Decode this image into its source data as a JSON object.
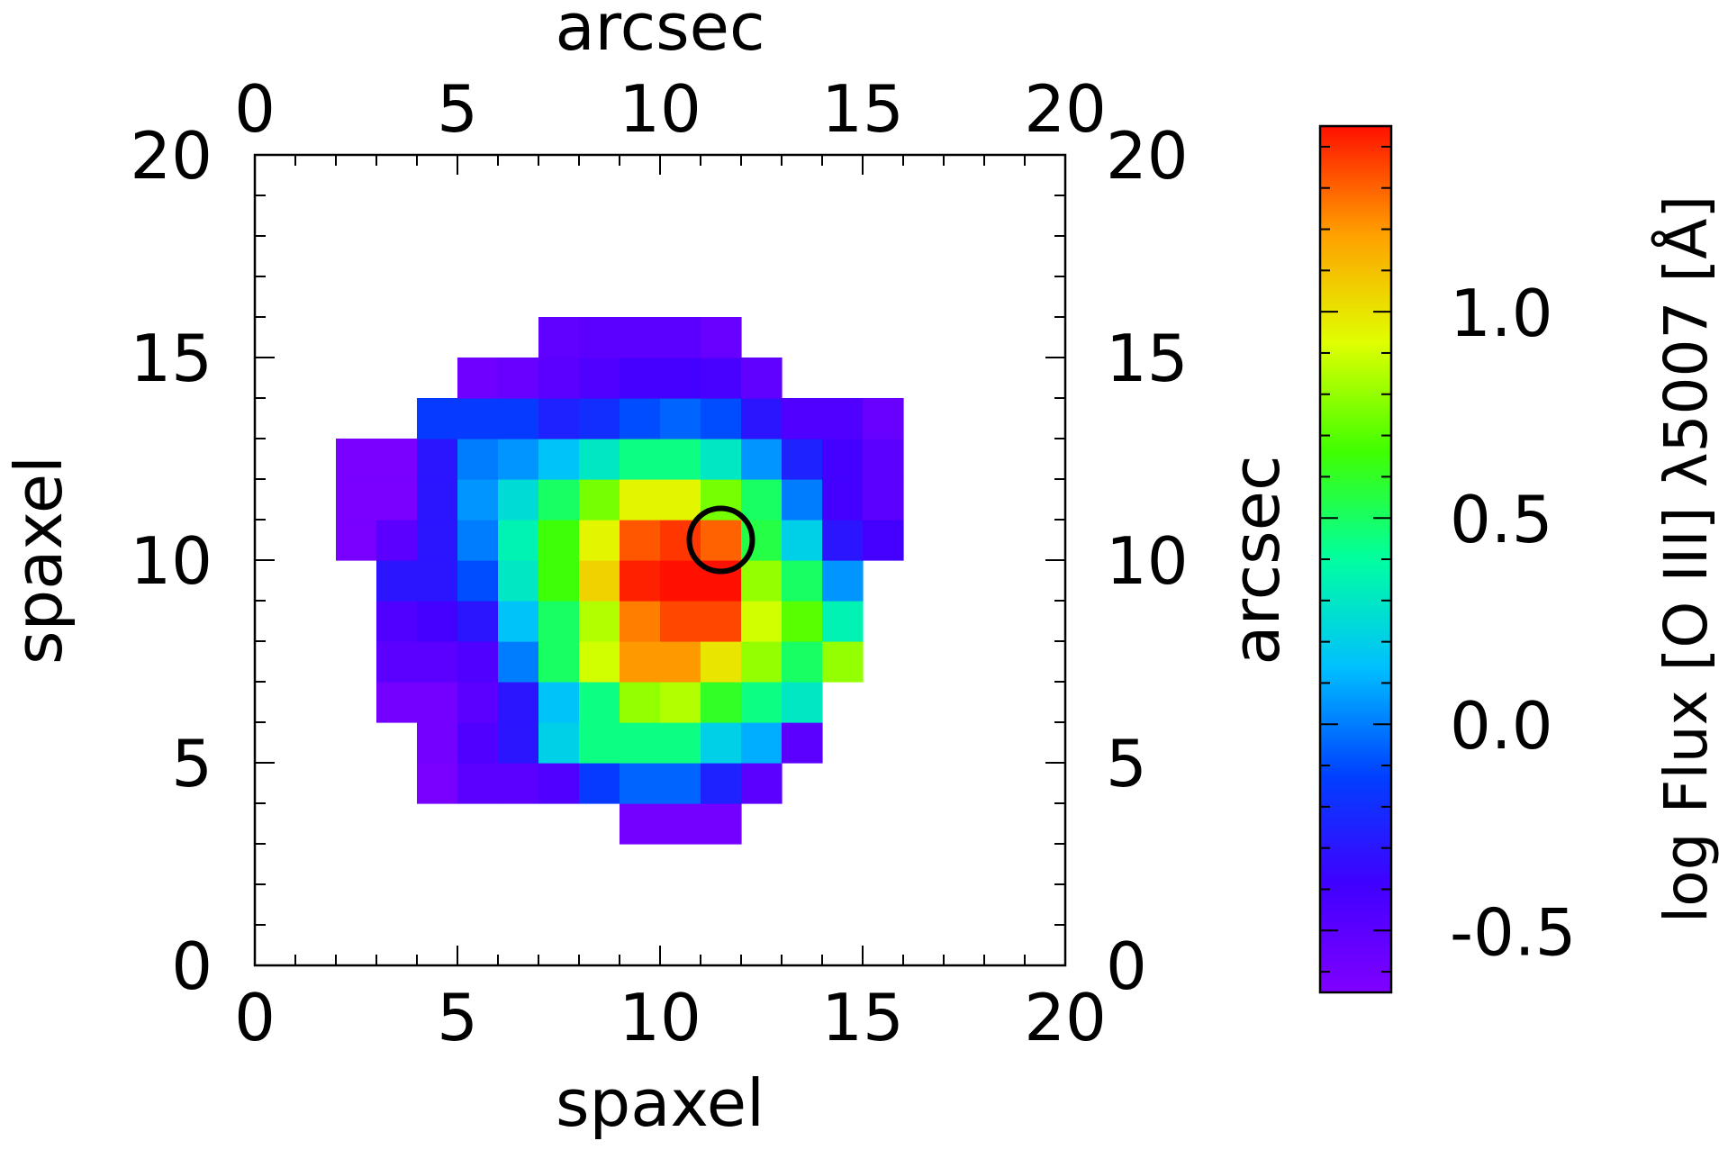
{
  "chart_data": {
    "type": "heatmap",
    "title": "",
    "xlabel": "spaxel",
    "ylabel": "spaxel",
    "x2label": "arcsec",
    "y2label": "arcsec",
    "xlim": [
      0,
      20
    ],
    "ylim": [
      0,
      20
    ],
    "x_ticks": [
      "0",
      "5",
      "10",
      "15",
      "20"
    ],
    "y_ticks": [
      "0",
      "5",
      "10",
      "15",
      "20"
    ],
    "x2_ticks": [
      "0",
      "5",
      "10",
      "15",
      "20"
    ],
    "y2_ticks": [
      "0",
      "5",
      "10",
      "15",
      "20"
    ],
    "colorbar": {
      "label": "log Flux [O III] λ5007 [Å]",
      "range": [
        -0.65,
        1.45
      ],
      "ticks": [
        {
          "value": 1.0,
          "label": "1.0"
        },
        {
          "value": 0.5,
          "label": "0.5"
        },
        {
          "value": 0.0,
          "label": "0.0"
        },
        {
          "value": -0.5,
          "label": "-0.5"
        }
      ],
      "colormap": "rainbow"
    },
    "marker": {
      "type": "circle",
      "x": 11.5,
      "y": 10.5,
      "color": "#000000"
    },
    "cells": [
      {
        "x": 9,
        "y": 3,
        "v": -0.6
      },
      {
        "x": 10,
        "y": 3,
        "v": -0.6
      },
      {
        "x": 11,
        "y": 3,
        "v": -0.6
      },
      {
        "x": 4,
        "y": 4,
        "v": -0.62
      },
      {
        "x": 5,
        "y": 4,
        "v": -0.5
      },
      {
        "x": 6,
        "y": 4,
        "v": -0.5
      },
      {
        "x": 7,
        "y": 4,
        "v": -0.45
      },
      {
        "x": 8,
        "y": 4,
        "v": -0.15
      },
      {
        "x": 9,
        "y": 4,
        "v": -0.05
      },
      {
        "x": 10,
        "y": 4,
        "v": -0.05
      },
      {
        "x": 11,
        "y": 4,
        "v": -0.25
      },
      {
        "x": 12,
        "y": 4,
        "v": -0.5
      },
      {
        "x": 4,
        "y": 5,
        "v": -0.6
      },
      {
        "x": 5,
        "y": 5,
        "v": -0.45
      },
      {
        "x": 6,
        "y": 5,
        "v": -0.3
      },
      {
        "x": 7,
        "y": 5,
        "v": 0.2
      },
      {
        "x": 8,
        "y": 5,
        "v": 0.45
      },
      {
        "x": 9,
        "y": 5,
        "v": 0.45
      },
      {
        "x": 10,
        "y": 5,
        "v": 0.45
      },
      {
        "x": 11,
        "y": 5,
        "v": 0.2
      },
      {
        "x": 12,
        "y": 5,
        "v": 0.1
      },
      {
        "x": 13,
        "y": 5,
        "v": -0.5
      },
      {
        "x": 3,
        "y": 6,
        "v": -0.6
      },
      {
        "x": 4,
        "y": 6,
        "v": -0.6
      },
      {
        "x": 5,
        "y": 6,
        "v": -0.5
      },
      {
        "x": 6,
        "y": 6,
        "v": -0.3
      },
      {
        "x": 7,
        "y": 6,
        "v": 0.15
      },
      {
        "x": 8,
        "y": 6,
        "v": 0.45
      },
      {
        "x": 9,
        "y": 6,
        "v": 0.8
      },
      {
        "x": 10,
        "y": 6,
        "v": 0.85
      },
      {
        "x": 11,
        "y": 6,
        "v": 0.6
      },
      {
        "x": 12,
        "y": 6,
        "v": 0.45
      },
      {
        "x": 13,
        "y": 6,
        "v": 0.3
      },
      {
        "x": 3,
        "y": 7,
        "v": -0.5
      },
      {
        "x": 4,
        "y": 7,
        "v": -0.5
      },
      {
        "x": 5,
        "y": 7,
        "v": -0.45
      },
      {
        "x": 6,
        "y": 7,
        "v": 0.0
      },
      {
        "x": 7,
        "y": 7,
        "v": 0.5
      },
      {
        "x": 8,
        "y": 7,
        "v": 0.9
      },
      {
        "x": 9,
        "y": 7,
        "v": 1.2
      },
      {
        "x": 10,
        "y": 7,
        "v": 1.2
      },
      {
        "x": 11,
        "y": 7,
        "v": 1.0
      },
      {
        "x": 12,
        "y": 7,
        "v": 0.8
      },
      {
        "x": 13,
        "y": 7,
        "v": 0.5
      },
      {
        "x": 14,
        "y": 7,
        "v": 0.8
      },
      {
        "x": 3,
        "y": 8,
        "v": -0.45
      },
      {
        "x": 4,
        "y": 8,
        "v": -0.4
      },
      {
        "x": 5,
        "y": 8,
        "v": -0.3
      },
      {
        "x": 6,
        "y": 8,
        "v": 0.15
      },
      {
        "x": 7,
        "y": 8,
        "v": 0.5
      },
      {
        "x": 8,
        "y": 8,
        "v": 0.85
      },
      {
        "x": 9,
        "y": 8,
        "v": 1.25
      },
      {
        "x": 10,
        "y": 8,
        "v": 1.35
      },
      {
        "x": 11,
        "y": 8,
        "v": 1.35
      },
      {
        "x": 12,
        "y": 8,
        "v": 0.9
      },
      {
        "x": 13,
        "y": 8,
        "v": 0.7
      },
      {
        "x": 14,
        "y": 8,
        "v": 0.35
      },
      {
        "x": 3,
        "y": 9,
        "v": -0.3
      },
      {
        "x": 4,
        "y": 9,
        "v": -0.3
      },
      {
        "x": 5,
        "y": 9,
        "v": -0.1
      },
      {
        "x": 6,
        "y": 9,
        "v": 0.3
      },
      {
        "x": 7,
        "y": 9,
        "v": 0.65
      },
      {
        "x": 8,
        "y": 9,
        "v": 1.05
      },
      {
        "x": 9,
        "y": 9,
        "v": 1.42
      },
      {
        "x": 10,
        "y": 9,
        "v": 1.45
      },
      {
        "x": 11,
        "y": 9,
        "v": 1.45
      },
      {
        "x": 12,
        "y": 9,
        "v": 0.8
      },
      {
        "x": 13,
        "y": 9,
        "v": 0.5
      },
      {
        "x": 14,
        "y": 9,
        "v": 0.05
      },
      {
        "x": 2,
        "y": 10,
        "v": -0.62
      },
      {
        "x": 3,
        "y": 10,
        "v": -0.5
      },
      {
        "x": 4,
        "y": 10,
        "v": -0.3
      },
      {
        "x": 5,
        "y": 10,
        "v": 0.0
      },
      {
        "x": 6,
        "y": 10,
        "v": 0.35
      },
      {
        "x": 7,
        "y": 10,
        "v": 0.65
      },
      {
        "x": 8,
        "y": 10,
        "v": 0.95
      },
      {
        "x": 9,
        "y": 10,
        "v": 1.32
      },
      {
        "x": 10,
        "y": 10,
        "v": 1.38
      },
      {
        "x": 11,
        "y": 10,
        "v": 1.3
      },
      {
        "x": 12,
        "y": 10,
        "v": 0.55
      },
      {
        "x": 13,
        "y": 10,
        "v": 0.2
      },
      {
        "x": 14,
        "y": 10,
        "v": -0.3
      },
      {
        "x": 15,
        "y": 10,
        "v": -0.4
      },
      {
        "x": 2,
        "y": 11,
        "v": -0.62
      },
      {
        "x": 3,
        "y": 11,
        "v": -0.62
      },
      {
        "x": 4,
        "y": 11,
        "v": -0.3
      },
      {
        "x": 5,
        "y": 11,
        "v": 0.05
      },
      {
        "x": 6,
        "y": 11,
        "v": 0.25
      },
      {
        "x": 7,
        "y": 11,
        "v": 0.5
      },
      {
        "x": 8,
        "y": 11,
        "v": 0.75
      },
      {
        "x": 9,
        "y": 11,
        "v": 0.95
      },
      {
        "x": 10,
        "y": 11,
        "v": 0.95
      },
      {
        "x": 11,
        "y": 11,
        "v": 0.75
      },
      {
        "x": 12,
        "y": 11,
        "v": 0.5
      },
      {
        "x": 13,
        "y": 11,
        "v": 0.0
      },
      {
        "x": 14,
        "y": 11,
        "v": -0.4
      },
      {
        "x": 15,
        "y": 11,
        "v": -0.5
      },
      {
        "x": 2,
        "y": 12,
        "v": -0.62
      },
      {
        "x": 3,
        "y": 12,
        "v": -0.62
      },
      {
        "x": 4,
        "y": 12,
        "v": -0.3
      },
      {
        "x": 5,
        "y": 12,
        "v": 0.0
      },
      {
        "x": 6,
        "y": 12,
        "v": 0.05
      },
      {
        "x": 7,
        "y": 12,
        "v": 0.15
      },
      {
        "x": 8,
        "y": 12,
        "v": 0.3
      },
      {
        "x": 9,
        "y": 12,
        "v": 0.45
      },
      {
        "x": 10,
        "y": 12,
        "v": 0.45
      },
      {
        "x": 11,
        "y": 12,
        "v": 0.3
      },
      {
        "x": 12,
        "y": 12,
        "v": 0.05
      },
      {
        "x": 13,
        "y": 12,
        "v": -0.25
      },
      {
        "x": 14,
        "y": 12,
        "v": -0.4
      },
      {
        "x": 15,
        "y": 12,
        "v": -0.5
      },
      {
        "x": 4,
        "y": 13,
        "v": -0.15
      },
      {
        "x": 5,
        "y": 13,
        "v": -0.15
      },
      {
        "x": 6,
        "y": 13,
        "v": -0.15
      },
      {
        "x": 7,
        "y": 13,
        "v": -0.25
      },
      {
        "x": 8,
        "y": 13,
        "v": -0.2
      },
      {
        "x": 9,
        "y": 13,
        "v": -0.1
      },
      {
        "x": 10,
        "y": 13,
        "v": -0.05
      },
      {
        "x": 11,
        "y": 13,
        "v": -0.1
      },
      {
        "x": 12,
        "y": 13,
        "v": -0.3
      },
      {
        "x": 13,
        "y": 13,
        "v": -0.45
      },
      {
        "x": 14,
        "y": 13,
        "v": -0.45
      },
      {
        "x": 15,
        "y": 13,
        "v": -0.55
      },
      {
        "x": 5,
        "y": 14,
        "v": -0.58
      },
      {
        "x": 6,
        "y": 14,
        "v": -0.55
      },
      {
        "x": 7,
        "y": 14,
        "v": -0.5
      },
      {
        "x": 8,
        "y": 14,
        "v": -0.45
      },
      {
        "x": 9,
        "y": 14,
        "v": -0.4
      },
      {
        "x": 10,
        "y": 14,
        "v": -0.4
      },
      {
        "x": 11,
        "y": 14,
        "v": -0.42
      },
      {
        "x": 12,
        "y": 14,
        "v": -0.52
      },
      {
        "x": 7,
        "y": 15,
        "v": -0.52
      },
      {
        "x": 8,
        "y": 15,
        "v": -0.5
      },
      {
        "x": 9,
        "y": 15,
        "v": -0.5
      },
      {
        "x": 10,
        "y": 15,
        "v": -0.5
      },
      {
        "x": 11,
        "y": 15,
        "v": -0.55
      }
    ]
  }
}
